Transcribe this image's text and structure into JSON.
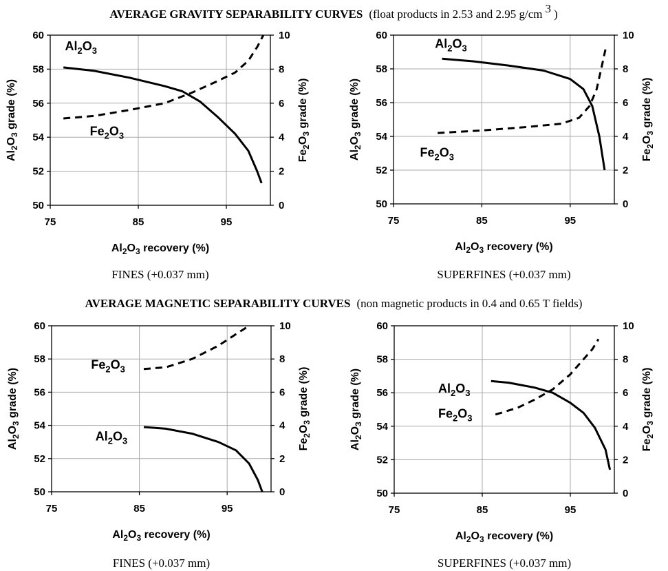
{
  "sections": [
    {
      "title_bold": "AVERAGE GRAVITY SEPARABILITY CURVES",
      "title_note": "(float products in  2.53 and 2.95 g/cm",
      "title_sup": "3",
      "title_tail": ")"
    },
    {
      "title_bold": "AVERAGE MAGNETIC SEPARABILITY CURVES",
      "title_note": "(non magnetic products in 0.4 and 0.65 T fields)",
      "title_sup": "",
      "title_tail": ""
    }
  ],
  "chart_data": [
    {
      "type": "line",
      "section": "gravity",
      "caption": "FINES (+0.037 mm)",
      "xlabel": "Al2O3 recovery (%)",
      "ylabel_left": "Al2O3 grade (%)",
      "ylabel_right": "Fe2O3 grade (%)",
      "xlim": [
        75,
        100
      ],
      "x_ticks": [
        75,
        85,
        95
      ],
      "ylim_left": [
        50,
        60
      ],
      "y_ticks_left": [
        50,
        52,
        54,
        56,
        58,
        60
      ],
      "ylim_right": [
        0,
        10
      ],
      "y_ticks_right": [
        0,
        2,
        4,
        6,
        8,
        10
      ],
      "grid": true,
      "series": [
        {
          "name": "Al2O3",
          "axis": "left",
          "style": "solid",
          "x": [
            76.5,
            80,
            84,
            88,
            90,
            92,
            94,
            96,
            97.5,
            98.5,
            99
          ],
          "y": [
            58.1,
            57.9,
            57.5,
            57.0,
            56.7,
            56.1,
            55.2,
            54.2,
            53.2,
            52.0,
            51.3
          ]
        },
        {
          "name": "Fe2O3",
          "axis": "right",
          "style": "dashed",
          "x": [
            76.5,
            80,
            84,
            88,
            91,
            94,
            96,
            97.5,
            98.5,
            99.2
          ],
          "y": [
            5.1,
            5.25,
            5.6,
            6.0,
            6.6,
            7.3,
            7.8,
            8.5,
            9.3,
            10.0
          ]
        }
      ],
      "annotations": [
        {
          "text": "Al2O3",
          "series": "Al2O3",
          "x": 78.5,
          "y": 59.1,
          "anchor": "middle"
        },
        {
          "text": "Fe2O3",
          "series": "Fe2O3",
          "x": 79.5,
          "y": 4.1,
          "anchor": "start"
        }
      ]
    },
    {
      "type": "line",
      "section": "gravity",
      "caption": "SUPERFINES (+0.037   mm)",
      "xlabel": "Al2O3 recovery (%)",
      "ylabel_left": "Al2O3 grade (%)",
      "ylabel_right": "Fe2O3 grade (%)",
      "xlim": [
        75,
        100
      ],
      "x_ticks": [
        75,
        85,
        95
      ],
      "ylim_left": [
        50,
        60
      ],
      "y_ticks_left": [
        50,
        52,
        54,
        56,
        58,
        60
      ],
      "ylim_right": [
        0,
        10
      ],
      "y_ticks_right": [
        0,
        2,
        4,
        6,
        8,
        10
      ],
      "grid": true,
      "series": [
        {
          "name": "Al2O3",
          "axis": "left",
          "style": "solid",
          "x": [
            80.5,
            84,
            88,
            92,
            95,
            96.5,
            97.5,
            98.3,
            98.9
          ],
          "y": [
            58.6,
            58.45,
            58.2,
            57.9,
            57.4,
            56.8,
            55.8,
            54.0,
            52.0
          ]
        },
        {
          "name": "Fe2O3",
          "axis": "right",
          "style": "dashed",
          "x": [
            80,
            85,
            90,
            94,
            96,
            97.2,
            98,
            98.6,
            99.1
          ],
          "y": [
            4.2,
            4.35,
            4.55,
            4.75,
            5.1,
            5.8,
            6.8,
            8.2,
            9.4
          ]
        }
      ],
      "annotations": [
        {
          "text": "Al2O3",
          "series": "Al2O3",
          "x": 81.5,
          "y": 59.25,
          "anchor": "middle"
        },
        {
          "text": "Fe2O3",
          "series": "Fe2O3",
          "x": 78,
          "y": 2.8,
          "anchor": "start"
        }
      ]
    },
    {
      "type": "line",
      "section": "magnetic",
      "caption": "FINES (+0.037 mm)",
      "xlabel": "Al2O3 recovery (%)",
      "ylabel_left": "Al2O3 grade (%)",
      "ylabel_right": "Fe2O3 grade (%)",
      "xlim": [
        75,
        100
      ],
      "x_ticks": [
        75,
        85,
        95
      ],
      "ylim_left": [
        50,
        60
      ],
      "y_ticks_left": [
        50,
        52,
        54,
        56,
        58,
        60
      ],
      "ylim_right": [
        0,
        10
      ],
      "y_ticks_right": [
        0,
        2,
        4,
        6,
        8,
        10
      ],
      "grid": true,
      "series": [
        {
          "name": "Al2O3",
          "axis": "left",
          "style": "solid",
          "x": [
            85.5,
            88,
            91,
            94,
            96,
            97.5,
            98.5,
            99
          ],
          "y": [
            53.9,
            53.8,
            53.5,
            53.0,
            52.5,
            51.7,
            50.7,
            50.0
          ]
        },
        {
          "name": "Fe2O3",
          "axis": "right",
          "style": "dashed",
          "x": [
            85.5,
            88,
            91,
            94,
            96,
            97.5
          ],
          "y": [
            7.4,
            7.5,
            8.0,
            8.8,
            9.5,
            10.0
          ]
        }
      ],
      "annotations": [
        {
          "text": "Fe2O3",
          "series": "Fe2O3",
          "x": 79.5,
          "y": 7.4,
          "anchor": "start"
        },
        {
          "text": "Al2O3",
          "series": "Al2O3",
          "x": 80.0,
          "y": 53.1,
          "anchor": "start"
        }
      ]
    },
    {
      "type": "line",
      "section": "magnetic",
      "caption": "SUPERFINES (+0.037 mm)",
      "xlabel": "Al2O3 recovery (%)",
      "ylabel_left": "Al2O3 grade (%)",
      "ylabel_right": "Fe2O3 grade (%)",
      "xlim": [
        75,
        100
      ],
      "x_ticks": [
        75,
        85,
        95
      ],
      "ylim_left": [
        50,
        60
      ],
      "y_ticks_left": [
        50,
        52,
        54,
        56,
        58,
        60
      ],
      "ylim_right": [
        0,
        10
      ],
      "y_ticks_right": [
        0,
        2,
        4,
        6,
        8,
        10
      ],
      "grid": true,
      "series": [
        {
          "name": "Al2O3",
          "axis": "left",
          "style": "solid",
          "x": [
            86,
            88,
            91,
            93,
            95,
            96.5,
            97.8,
            99,
            99.5
          ],
          "y": [
            56.7,
            56.6,
            56.3,
            56.0,
            55.4,
            54.8,
            53.9,
            52.6,
            51.4
          ]
        },
        {
          "name": "Fe2O3",
          "axis": "right",
          "style": "dashed",
          "x": [
            86.5,
            89,
            91,
            93,
            95,
            96.5,
            97.5,
            98.2
          ],
          "y": [
            4.7,
            5.1,
            5.6,
            6.2,
            7.1,
            8.0,
            8.6,
            9.2
          ]
        }
      ],
      "annotations": [
        {
          "text": "Al2O3",
          "series": "Al2O3",
          "x": 80.0,
          "y": 56.0,
          "anchor": "start"
        },
        {
          "text": "Fe2O3",
          "series": "Fe2O3",
          "x": 80.0,
          "y": 4.5,
          "anchor": "start"
        }
      ]
    }
  ]
}
